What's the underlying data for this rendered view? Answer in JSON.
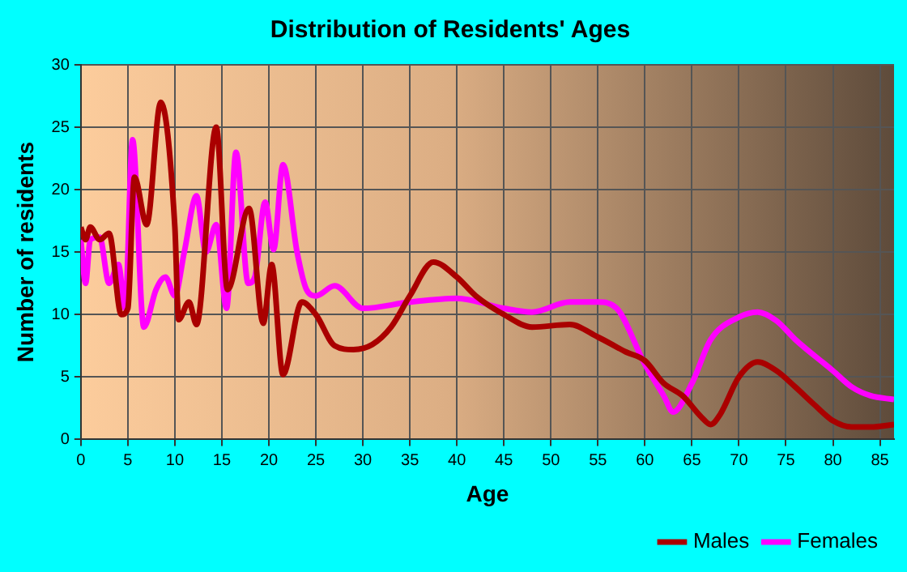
{
  "chart_data": {
    "type": "line",
    "title": "Distribution of Residents' Ages",
    "xlabel": "Age",
    "ylabel": "Number of residents",
    "xlim": [
      0,
      86.5
    ],
    "xticks": [
      0,
      5,
      10,
      15,
      20,
      25,
      30,
      35,
      40,
      45,
      50,
      55,
      60,
      65,
      70,
      75,
      80,
      85
    ],
    "ylim": [
      0,
      30
    ],
    "yticks": [
      0,
      5,
      10,
      15,
      20,
      25,
      30
    ],
    "grid": true,
    "legend": "bottom right",
    "marker": "none",
    "line_style": "solid",
    "series": [
      {
        "name": "Males",
        "color": "#aa0000",
        "x": [
          0,
          0.5,
          1,
          2,
          3,
          4.3,
          5,
          5.7,
          7,
          8.5,
          10,
          10.4,
          11.5,
          12.3,
          14.4,
          15.6,
          17.9,
          19.4,
          20.3,
          21.5,
          23.5,
          25,
          27,
          29,
          31,
          33,
          35,
          37.5,
          40,
          42,
          45,
          48,
          52,
          55,
          58,
          60,
          62,
          64,
          66,
          67,
          68,
          70,
          72,
          74,
          76,
          78,
          80,
          82,
          84,
          86.5
        ],
        "values": [
          17,
          16,
          17,
          16,
          16.5,
          10,
          10.5,
          21,
          17.2,
          27,
          17,
          9.6,
          11,
          9.2,
          25,
          12,
          18.5,
          9.3,
          14,
          5.2,
          11,
          10,
          7.5,
          7.2,
          7.6,
          9,
          11.5,
          14.2,
          13,
          11.5,
          10,
          9,
          9.2,
          8.2,
          7,
          6.3,
          4.5,
          3.5,
          1.8,
          1.2,
          2,
          5,
          6.2,
          5.5,
          4.2,
          2.8,
          1.5,
          1,
          1,
          1.2
        ]
      },
      {
        "name": "Females",
        "color": "#ff00ff",
        "x": [
          0,
          0.5,
          1,
          2,
          3,
          4,
          4.7,
          5.5,
          6.7,
          8,
          9,
          10,
          11,
          12.3,
          13.3,
          14.4,
          15.5,
          16.5,
          17.8,
          18.5,
          19.6,
          20.5,
          21.5,
          23,
          24,
          25,
          27,
          30,
          35,
          40,
          45,
          48,
          52,
          55,
          57,
          60,
          62,
          63,
          65,
          67,
          70,
          72,
          74,
          76,
          80,
          82,
          84,
          86.5
        ],
        "values": [
          16,
          12.5,
          16,
          16.2,
          12.5,
          14,
          10.5,
          24,
          9,
          12,
          13,
          11.5,
          15,
          19.5,
          15,
          17.2,
          10.5,
          23,
          12.5,
          13,
          19,
          15.2,
          22,
          15,
          12,
          11.5,
          12.3,
          10.5,
          11,
          11.3,
          10.5,
          10.2,
          11,
          11,
          10.5,
          6,
          3.5,
          2.2,
          4.5,
          8,
          9.8,
          10.2,
          9.5,
          8,
          5.5,
          4.2,
          3.5,
          3.2
        ]
      }
    ]
  }
}
